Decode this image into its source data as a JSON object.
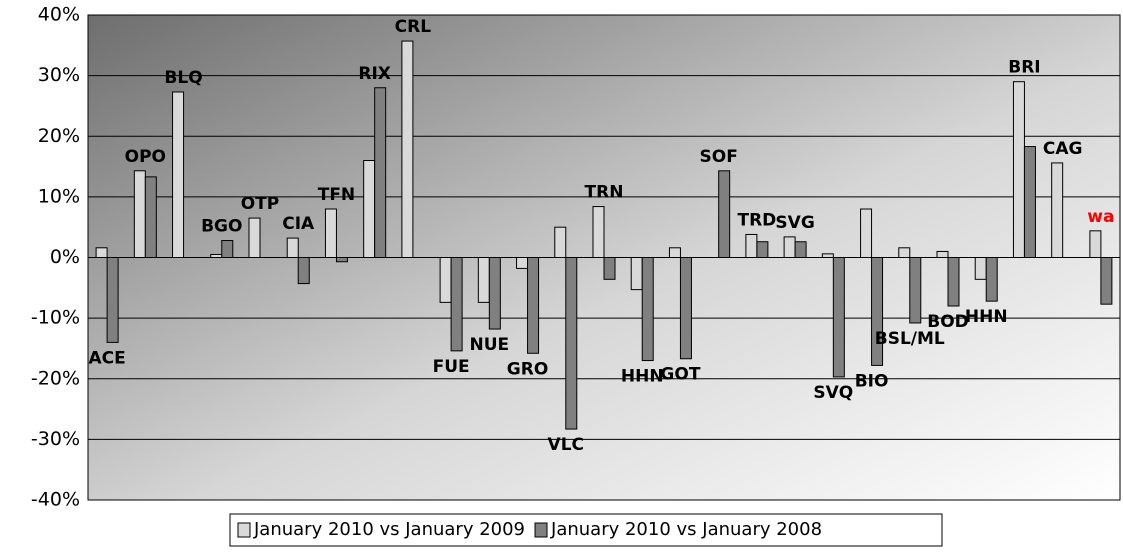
{
  "chart_data": {
    "type": "bar",
    "categories": [
      "ACE",
      "OPO",
      "BLQ",
      "BGO",
      "OTP",
      "CIA",
      "TFN",
      "RIX",
      "CRL",
      "FUE",
      "NUE",
      "GRO",
      "VLC",
      "TRN",
      "HHN",
      "GOT",
      "SOF",
      "TRD",
      "SVG",
      "SVQ",
      "BIO",
      "BSL/ML",
      "BOD",
      "HHN",
      "BRI",
      "CAG",
      "wa"
    ],
    "category_colors": [
      "#000000",
      "#000000",
      "#000000",
      "#000000",
      "#000000",
      "#000000",
      "#000000",
      "#000000",
      "#000000",
      "#000000",
      "#000000",
      "#000000",
      "#000000",
      "#000000",
      "#000000",
      "#000000",
      "#000000",
      "#000000",
      "#000000",
      "#000000",
      "#000000",
      "#000000",
      "#000000",
      "#000000",
      "#000000",
      "#000000",
      "#ff0000"
    ],
    "series": [
      {
        "name": "January 2010 vs January 2009",
        "color": "#d9d9d9",
        "values": [
          1.6,
          14.3,
          27.3,
          0.5,
          6.5,
          3.2,
          8,
          16,
          35.7,
          -7.4,
          -7.4,
          -1.8,
          5,
          8.4,
          -5.3,
          1.6,
          null,
          3.8,
          3.4,
          0.6,
          8,
          1.6,
          1,
          -3.6,
          29,
          15.6,
          4.4
        ]
      },
      {
        "name": "January 2010 vs January 2008",
        "color": "#808080",
        "values": [
          -14,
          13.3,
          null,
          2.8,
          null,
          -4.3,
          -0.7,
          28,
          null,
          -15.4,
          -11.8,
          -15.8,
          -28.3,
          -3.6,
          -17,
          -16.7,
          14.3,
          2.6,
          2.6,
          -19.7,
          -17.8,
          -10.8,
          -8,
          -7.2,
          18.3,
          null,
          -7.7
        ]
      }
    ],
    "ylim": [
      -40,
      40
    ],
    "yticks": [
      {
        "value": -40,
        "label": "-40%"
      },
      {
        "value": -30,
        "label": "-30%"
      },
      {
        "value": -20,
        "label": "-20%"
      },
      {
        "value": -10,
        "label": "-10%"
      },
      {
        "value": 0,
        "label": "0%"
      },
      {
        "value": 10,
        "label": "10%"
      },
      {
        "value": 20,
        "label": "20%"
      },
      {
        "value": 30,
        "label": "30%"
      },
      {
        "value": 40,
        "label": "40%"
      }
    ],
    "grid": true,
    "legend": "bottom"
  }
}
